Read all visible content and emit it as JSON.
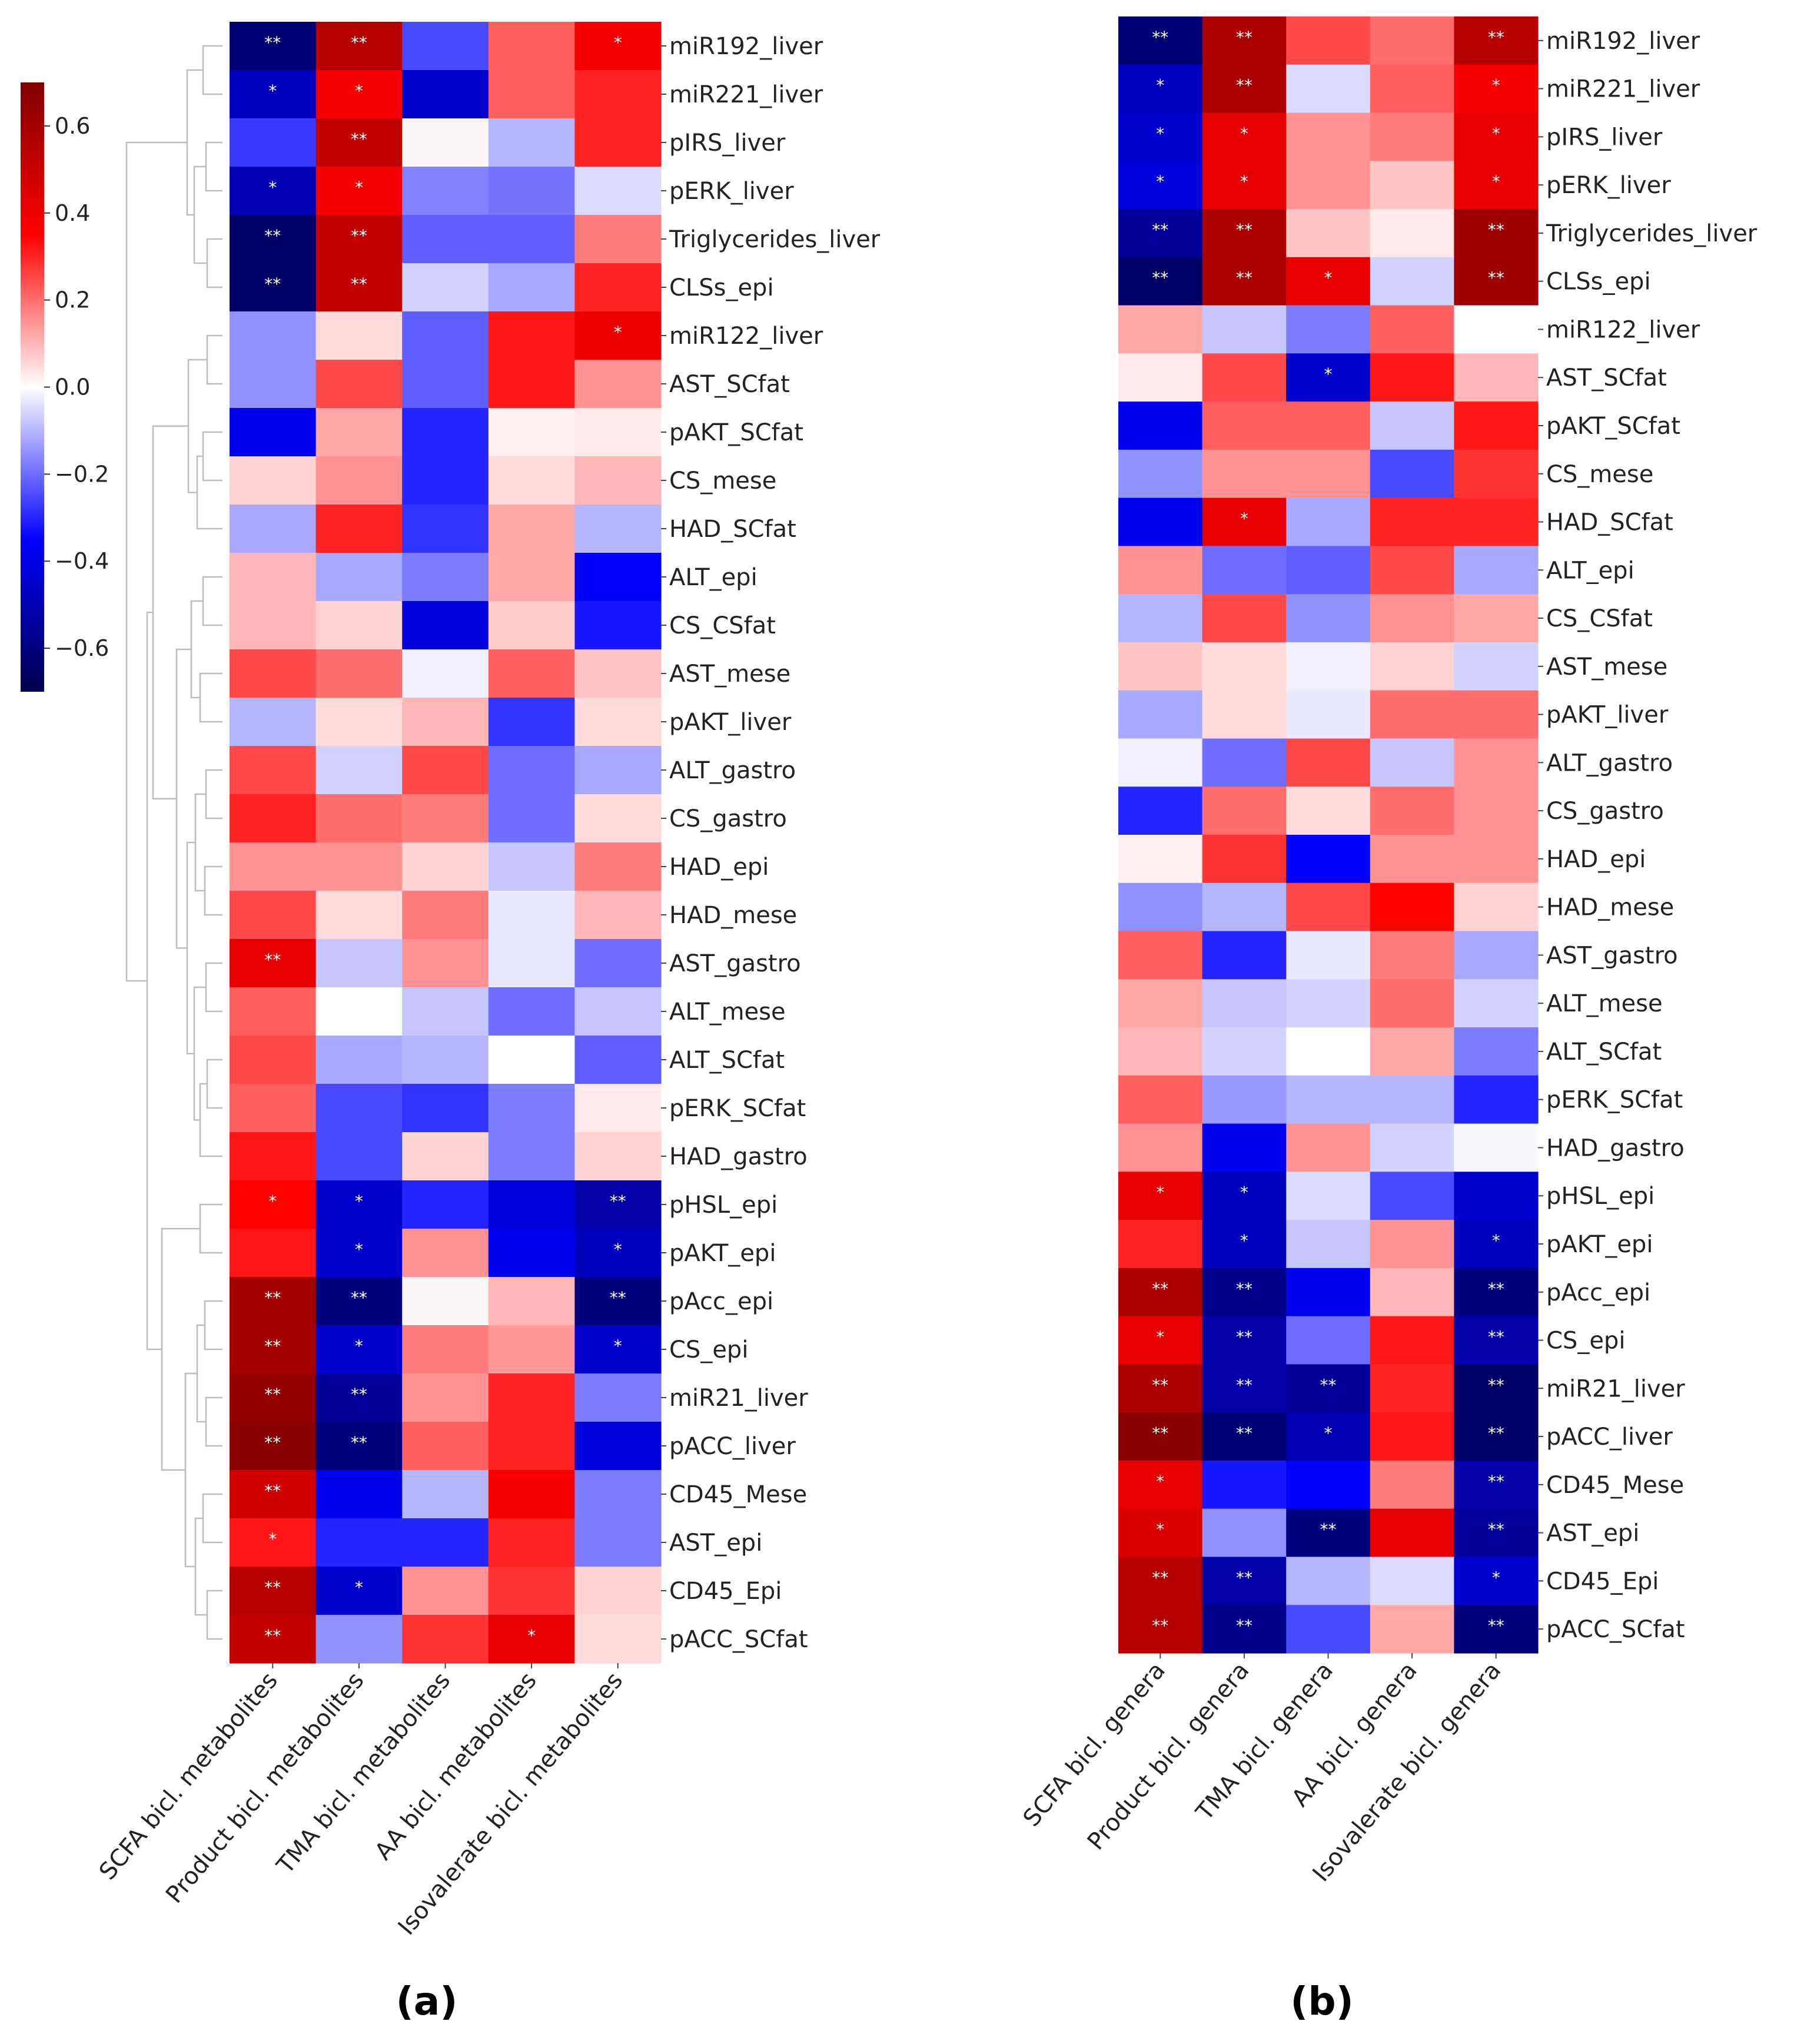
{
  "chart_data": [
    {
      "type": "heatmap",
      "panel_label": "(a)",
      "columns": [
        "SCFA bicl. metabolites",
        "Product bicl. metabolites",
        "TMA bicl. metabolites",
        "AA bicl. metabolites",
        "Isovalerate bicl. metabolites"
      ],
      "rows": [
        "miR192_liver",
        "miR221_liver",
        "pIRS_liver",
        "pERK_liver",
        "Triglycerides_liver",
        "CLSs_epi",
        "miR122_liver",
        "AST_SCfat",
        "pAKT_SCfat",
        "CS_mese",
        "HAD_SCfat",
        "ALT_epi",
        "CS_CSfat",
        "AST_mese",
        "pAKT_liver",
        "ALT_gastro",
        "CS_gastro",
        "HAD_epi",
        "HAD_mese",
        "AST_gastro",
        "ALT_mese",
        "ALT_SCfat",
        "pERK_SCfat",
        "HAD_gastro",
        "pHSL_epi",
        "pAKT_epi",
        "pAcc_epi",
        "CS_epi",
        "miR21_liver",
        "pACC_liver",
        "CD45_Mese",
        "AST_epi",
        "CD45_Epi",
        "pACC_SCfat"
      ],
      "values": [
        [
          -0.62,
          0.55,
          -0.25,
          0.22,
          0.38
        ],
        [
          -0.48,
          0.38,
          -0.45,
          0.22,
          0.3
        ],
        [
          -0.27,
          0.52,
          0.01,
          -0.1,
          0.3
        ],
        [
          -0.5,
          0.38,
          -0.17,
          -0.19,
          -0.05
        ],
        [
          -0.65,
          0.52,
          -0.22,
          -0.22,
          0.18
        ],
        [
          -0.65,
          0.52,
          -0.06,
          -0.12,
          0.3
        ],
        [
          -0.15,
          0.05,
          -0.22,
          0.32,
          0.4
        ],
        [
          -0.15,
          0.25,
          -0.22,
          0.32,
          0.15
        ],
        [
          -0.38,
          0.12,
          -0.3,
          0.02,
          0.03
        ],
        [
          0.06,
          0.15,
          -0.3,
          0.05,
          0.1
        ],
        [
          -0.12,
          0.3,
          -0.28,
          0.12,
          -0.1
        ],
        [
          0.1,
          -0.12,
          -0.18,
          0.12,
          -0.36
        ],
        [
          0.1,
          0.06,
          -0.42,
          0.07,
          -0.32
        ],
        [
          0.25,
          0.2,
          -0.02,
          0.22,
          0.08
        ],
        [
          -0.1,
          0.05,
          0.1,
          -0.28,
          0.05
        ],
        [
          0.25,
          -0.06,
          0.25,
          -0.2,
          -0.12
        ],
        [
          0.3,
          0.2,
          0.18,
          -0.2,
          0.05
        ],
        [
          0.15,
          0.15,
          0.06,
          -0.08,
          0.18
        ],
        [
          0.25,
          0.05,
          0.18,
          -0.03,
          0.1
        ],
        [
          0.42,
          -0.08,
          0.15,
          -0.03,
          -0.2
        ],
        [
          0.22,
          0.0,
          -0.08,
          -0.2,
          -0.08
        ],
        [
          0.25,
          -0.12,
          -0.1,
          0.0,
          -0.22
        ],
        [
          0.22,
          -0.25,
          -0.28,
          -0.18,
          0.03
        ],
        [
          0.32,
          -0.25,
          0.06,
          -0.18,
          0.06
        ],
        [
          0.35,
          -0.45,
          -0.3,
          -0.42,
          -0.52
        ],
        [
          0.32,
          -0.45,
          0.15,
          -0.38,
          -0.48
        ],
        [
          0.6,
          -0.6,
          0.01,
          0.1,
          -0.6
        ],
        [
          0.6,
          -0.45,
          0.18,
          0.14,
          -0.45
        ],
        [
          0.65,
          -0.55,
          0.15,
          0.3,
          -0.18
        ],
        [
          0.68,
          -0.6,
          0.22,
          0.3,
          -0.42
        ],
        [
          0.48,
          -0.38,
          -0.1,
          0.38,
          -0.18
        ],
        [
          0.32,
          -0.3,
          -0.3,
          0.3,
          -0.18
        ],
        [
          0.55,
          -0.45,
          0.15,
          0.28,
          0.06
        ],
        [
          0.52,
          -0.15,
          0.28,
          0.42,
          0.05
        ]
      ],
      "significance": [
        [
          "**",
          "**",
          "",
          "",
          "*"
        ],
        [
          "*",
          "*",
          "",
          "",
          ""
        ],
        [
          "",
          "**",
          "",
          "",
          ""
        ],
        [
          "*",
          "*",
          "",
          "",
          ""
        ],
        [
          "**",
          "**",
          "",
          "",
          ""
        ],
        [
          "**",
          "**",
          "",
          "",
          ""
        ],
        [
          "",
          "",
          "",
          "",
          "*"
        ],
        [
          "",
          "",
          "",
          "",
          ""
        ],
        [
          "",
          "",
          "",
          "",
          ""
        ],
        [
          "",
          "",
          "",
          "",
          ""
        ],
        [
          "",
          "",
          "",
          "",
          ""
        ],
        [
          "",
          "",
          "",
          "",
          ""
        ],
        [
          "",
          "",
          "",
          "",
          ""
        ],
        [
          "",
          "",
          "",
          "",
          ""
        ],
        [
          "",
          "",
          "",
          "",
          ""
        ],
        [
          "",
          "",
          "",
          "",
          ""
        ],
        [
          "",
          "",
          "",
          "",
          ""
        ],
        [
          "",
          "",
          "",
          "",
          ""
        ],
        [
          "",
          "",
          "",
          "",
          ""
        ],
        [
          "**",
          "",
          "",
          "",
          ""
        ],
        [
          "",
          "",
          "",
          "",
          ""
        ],
        [
          "",
          "",
          "",
          "",
          ""
        ],
        [
          "",
          "",
          "",
          "",
          ""
        ],
        [
          "",
          "",
          "",
          "",
          ""
        ],
        [
          "*",
          "*",
          "",
          "",
          "**"
        ],
        [
          "",
          "*",
          "",
          "",
          "*"
        ],
        [
          "**",
          "**",
          "",
          "",
          "**"
        ],
        [
          "**",
          "*",
          "",
          "",
          "*"
        ],
        [
          "**",
          "**",
          "",
          "",
          ""
        ],
        [
          "**",
          "**",
          "",
          "",
          ""
        ],
        [
          "**",
          "",
          "",
          "",
          ""
        ],
        [
          "*",
          "",
          "",
          "",
          ""
        ],
        [
          "**",
          "*",
          "",
          "",
          ""
        ],
        [
          "**",
          "",
          "",
          "*",
          ""
        ]
      ],
      "colorbar": {
        "colormap": "seismic",
        "vmin": -0.7,
        "vmax": 0.7,
        "ticks": [
          0.6,
          0.4,
          0.2,
          0.0,
          -0.2,
          -0.4,
          -0.6
        ],
        "tick_labels": [
          "0.6",
          "0.4",
          "0.2",
          "0.0",
          "−0.2",
          "−0.4",
          "−0.6"
        ]
      },
      "dendrogram": "row clustering, drawn on the left"
    },
    {
      "type": "heatmap",
      "panel_label": "(b)",
      "columns": [
        "SCFA bicl. genera",
        "Product bicl. genera",
        "TMA bicl. genera",
        "AA bicl. genera",
        "Isovalerate bicl. genera"
      ],
      "rows": [
        "miR192_liver",
        "miR221_liver",
        "pIRS_liver",
        "pERK_liver",
        "Triglycerides_liver",
        "CLSs_epi",
        "miR122_liver",
        "AST_SCfat",
        "pAKT_SCfat",
        "CS_mese",
        "HAD_SCfat",
        "ALT_epi",
        "CS_CSfat",
        "AST_mese",
        "pAKT_liver",
        "ALT_gastro",
        "CS_gastro",
        "HAD_epi",
        "HAD_mese",
        "AST_gastro",
        "ALT_mese",
        "ALT_SCfat",
        "pERK_SCfat",
        "HAD_gastro",
        "pHSL_epi",
        "pAKT_epi",
        "pAcc_epi",
        "CS_epi",
        "miR21_liver",
        "pACC_liver",
        "CD45_Mese",
        "AST_epi",
        "CD45_Epi",
        "pACC_SCfat"
      ],
      "values": [
        [
          -0.62,
          0.58,
          0.25,
          0.2,
          0.55
        ],
        [
          -0.48,
          0.58,
          -0.05,
          0.22,
          0.38
        ],
        [
          -0.45,
          0.42,
          0.15,
          0.18,
          0.42
        ],
        [
          -0.42,
          0.42,
          0.15,
          0.08,
          0.42
        ],
        [
          -0.55,
          0.58,
          0.08,
          0.03,
          0.62
        ],
        [
          -0.65,
          0.58,
          0.42,
          -0.06,
          0.62
        ],
        [
          0.12,
          -0.08,
          -0.18,
          0.22,
          0.0
        ],
        [
          0.03,
          0.25,
          -0.45,
          0.32,
          0.1
        ],
        [
          -0.38,
          0.22,
          0.22,
          -0.08,
          0.32
        ],
        [
          -0.15,
          0.15,
          0.15,
          -0.25,
          0.28
        ],
        [
          -0.38,
          0.42,
          -0.12,
          0.3,
          0.3
        ],
        [
          0.15,
          -0.2,
          -0.22,
          0.25,
          -0.12
        ],
        [
          -0.1,
          0.25,
          -0.15,
          0.15,
          0.12
        ],
        [
          0.08,
          0.05,
          -0.02,
          0.06,
          -0.06
        ],
        [
          -0.12,
          0.05,
          -0.03,
          0.2,
          0.2
        ],
        [
          -0.02,
          -0.2,
          0.25,
          -0.08,
          0.15
        ],
        [
          -0.3,
          0.2,
          0.05,
          0.2,
          0.15
        ],
        [
          0.02,
          0.28,
          -0.35,
          0.15,
          0.15
        ],
        [
          -0.15,
          -0.1,
          0.25,
          0.35,
          0.06
        ],
        [
          0.22,
          -0.3,
          -0.03,
          0.18,
          -0.12
        ],
        [
          0.12,
          -0.08,
          -0.06,
          0.2,
          -0.06
        ],
        [
          0.1,
          -0.06,
          0.0,
          0.12,
          -0.18
        ],
        [
          0.22,
          -0.14,
          -0.1,
          -0.1,
          -0.3
        ],
        [
          0.15,
          -0.38,
          0.15,
          -0.06,
          -0.01
        ],
        [
          0.42,
          -0.48,
          -0.05,
          -0.25,
          -0.45
        ],
        [
          0.3,
          -0.48,
          -0.08,
          0.15,
          -0.48
        ],
        [
          0.58,
          -0.58,
          -0.38,
          0.1,
          -0.6
        ],
        [
          0.42,
          -0.52,
          -0.2,
          0.32,
          -0.52
        ],
        [
          0.58,
          -0.52,
          -0.55,
          0.3,
          -0.65
        ],
        [
          0.68,
          -0.62,
          -0.5,
          0.32,
          -0.65
        ],
        [
          0.42,
          -0.32,
          -0.35,
          0.18,
          -0.52
        ],
        [
          0.45,
          -0.15,
          -0.6,
          0.42,
          -0.55
        ],
        [
          0.55,
          -0.52,
          -0.1,
          -0.05,
          -0.45
        ],
        [
          0.55,
          -0.58,
          -0.25,
          0.12,
          -0.6
        ]
      ],
      "significance": [
        [
          "**",
          "**",
          "",
          "",
          "**"
        ],
        [
          "*",
          "**",
          "",
          "",
          "*"
        ],
        [
          "*",
          "*",
          "",
          "",
          "*"
        ],
        [
          "*",
          "*",
          "",
          "",
          "*"
        ],
        [
          "**",
          "**",
          "",
          "",
          "**"
        ],
        [
          "**",
          "**",
          "*",
          "",
          "**"
        ],
        [
          "",
          "",
          "",
          "",
          ""
        ],
        [
          "",
          "",
          "*",
          "",
          ""
        ],
        [
          "",
          "",
          "",
          "",
          ""
        ],
        [
          "",
          "",
          "",
          "",
          ""
        ],
        [
          "",
          "*",
          "",
          "",
          ""
        ],
        [
          "",
          "",
          "",
          "",
          ""
        ],
        [
          "",
          "",
          "",
          "",
          ""
        ],
        [
          "",
          "",
          "",
          "",
          ""
        ],
        [
          "",
          "",
          "",
          "",
          ""
        ],
        [
          "",
          "",
          "",
          "",
          ""
        ],
        [
          "",
          "",
          "",
          "",
          ""
        ],
        [
          "",
          "",
          "",
          "",
          ""
        ],
        [
          "",
          "",
          "",
          "",
          ""
        ],
        [
          "",
          "",
          "",
          "",
          ""
        ],
        [
          "",
          "",
          "",
          "",
          ""
        ],
        [
          "",
          "",
          "",
          "",
          ""
        ],
        [
          "",
          "",
          "",
          "",
          ""
        ],
        [
          "",
          "",
          "",
          "",
          ""
        ],
        [
          "*",
          "*",
          "",
          "",
          ""
        ],
        [
          "",
          "*",
          "",
          "",
          "*"
        ],
        [
          "**",
          "**",
          "",
          "",
          "**"
        ],
        [
          "*",
          "**",
          "",
          "",
          "**"
        ],
        [
          "**",
          "**",
          "**",
          "",
          "**"
        ],
        [
          "**",
          "**",
          "*",
          "",
          "**"
        ],
        [
          "*",
          "",
          "",
          "",
          "**"
        ],
        [
          "*",
          "",
          "**",
          "",
          "**"
        ],
        [
          "**",
          "**",
          "",
          "",
          "*"
        ],
        [
          "**",
          "**",
          "",
          "",
          "**"
        ]
      ]
    }
  ]
}
